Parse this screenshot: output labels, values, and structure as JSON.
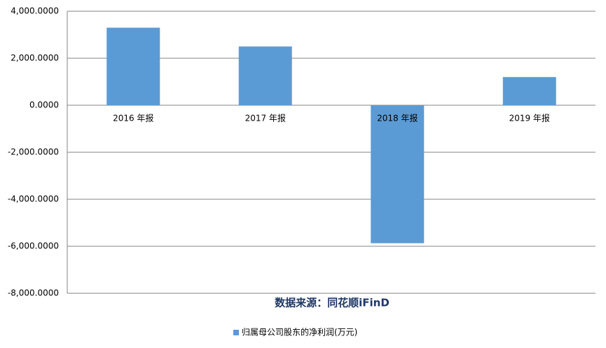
{
  "chart_data": {
    "type": "bar",
    "categories": [
      "2016 年报",
      "2017 年报",
      "2018 年报",
      "2019 年报"
    ],
    "series": [
      {
        "name": "归属母公司股东的净利润(万元)",
        "color": "#5b9bd5",
        "values": [
          3300,
          2500,
          -5870,
          1200
        ]
      }
    ],
    "ylim": [
      -8000,
      4000
    ],
    "yticks": [
      {
        "value": -8000,
        "label": "-8,000.0000"
      },
      {
        "value": -6000,
        "label": "-6,000.0000"
      },
      {
        "value": -4000,
        "label": "-4,000.0000"
      },
      {
        "value": -2000,
        "label": "-2,000.0000"
      },
      {
        "value": 0,
        "label": "0.0000"
      },
      {
        "value": 2000,
        "label": "2,000.0000"
      },
      {
        "value": 4000,
        "label": "4,000.0000"
      }
    ],
    "grid": true,
    "annotation": "数据来源：同花顺iFinD",
    "legend": "bottom"
  }
}
